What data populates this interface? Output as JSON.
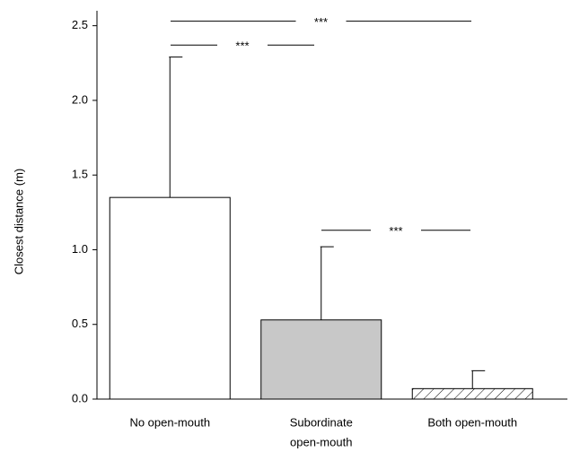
{
  "chart_data": {
    "type": "bar",
    "y_label": "Closest distance (m)",
    "categories": [
      [
        "No open-mouth"
      ],
      [
        "Subordinate",
        "open-mouth"
      ],
      [
        "Both open-mouth"
      ]
    ],
    "values": [
      1.35,
      0.53,
      0.07
    ],
    "errors": [
      0.94,
      0.49,
      0.12
    ],
    "colors": [
      "#ffffff",
      "#c8c8c8",
      "hatch"
    ],
    "ylim": [
      0,
      2.6
    ],
    "yticks": [
      {
        "value": 0,
        "label": "0.0"
      },
      0.5,
      {
        "value": 1,
        "label": "1.0"
      },
      1.5,
      {
        "value": 2,
        "label": "2.0"
      },
      2.5
    ],
    "annotations": [
      {
        "text": "***",
        "y": 2.53
      },
      {
        "text": "***",
        "y": 2.37
      },
      {
        "text": "***",
        "y": 1.13
      }
    ]
  }
}
